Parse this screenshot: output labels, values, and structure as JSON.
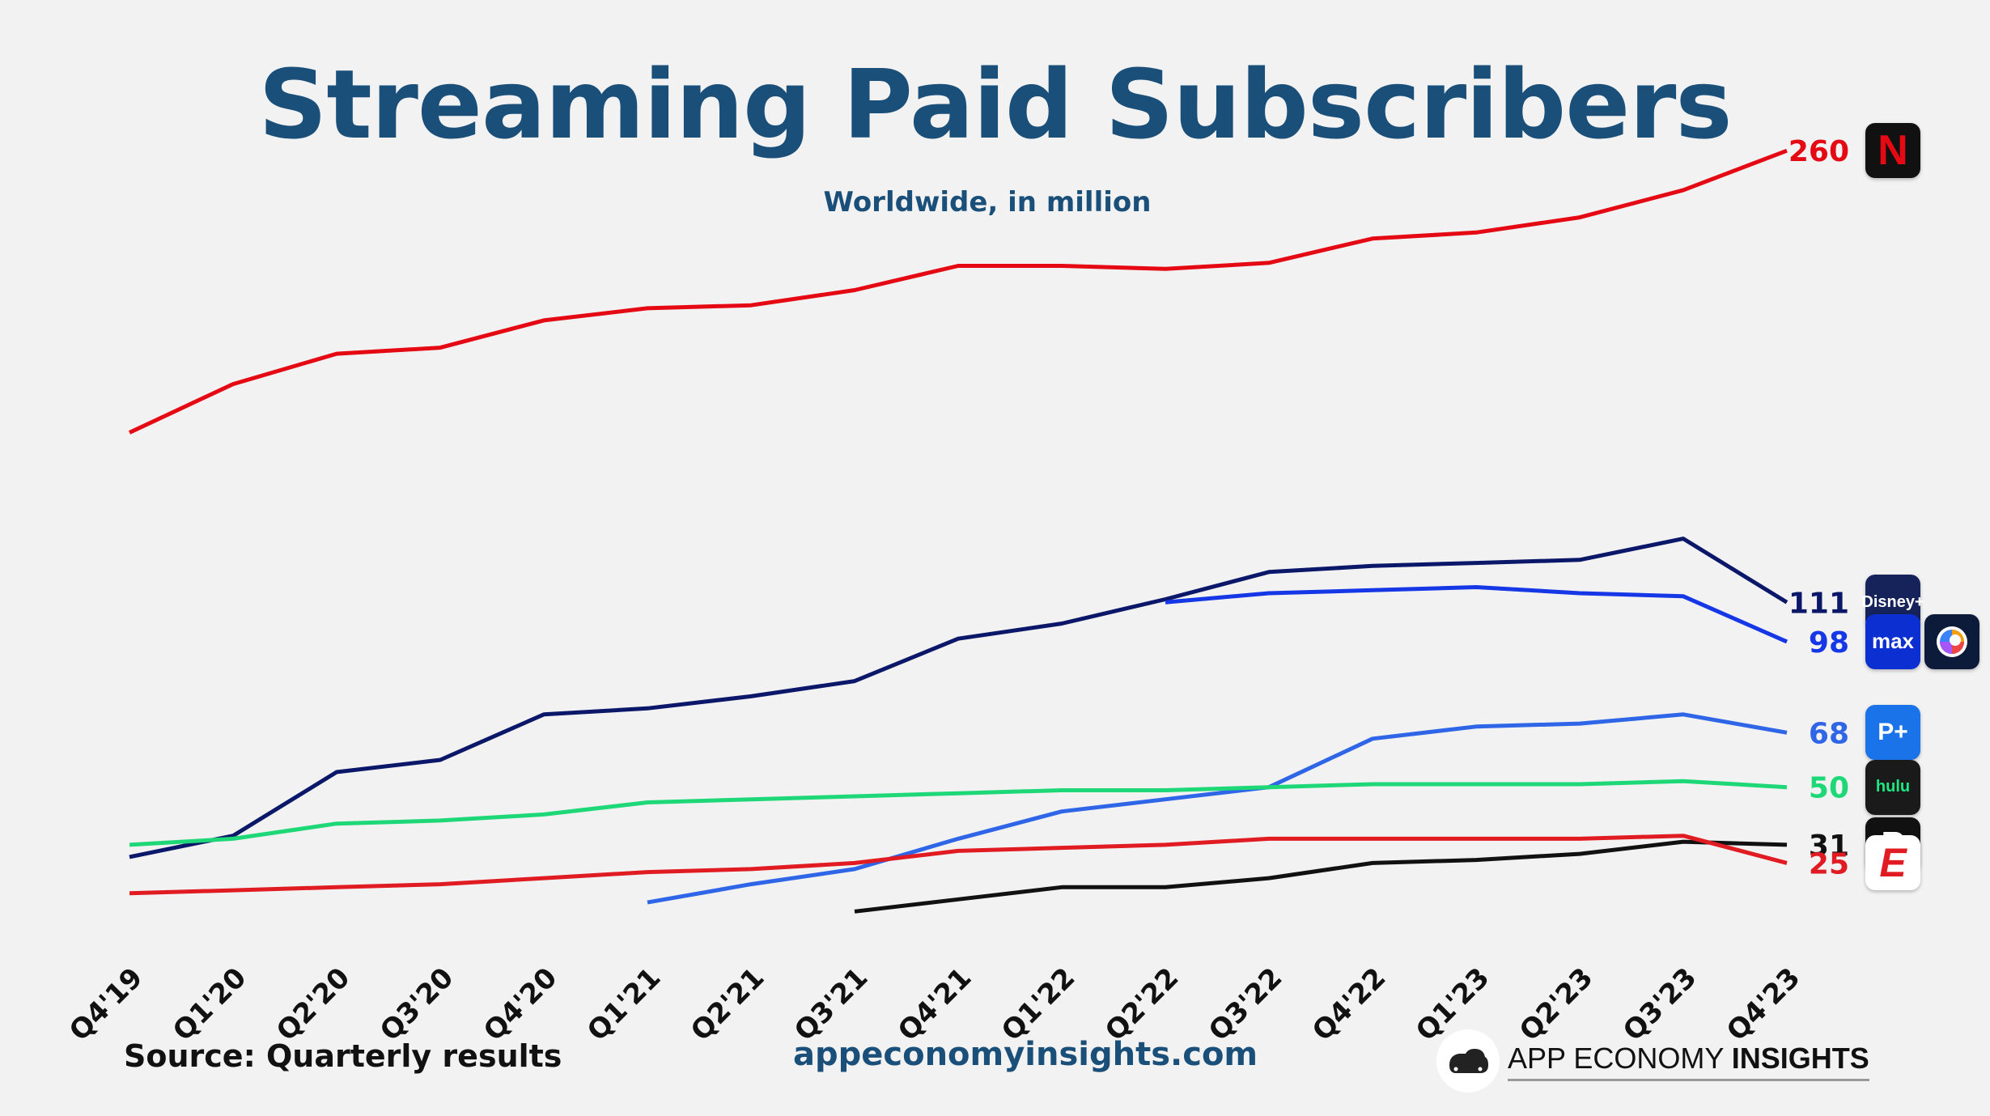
{
  "title": "Streaming Paid Subscribers",
  "subtitle": "Worldwide, in million",
  "footer": {
    "source": "Source: Quarterly results",
    "website": "appeconomyinsights.com",
    "brand_regular": "APP ECONOMY ",
    "brand_bold": "INSIGHTS"
  },
  "chart_data": {
    "type": "line",
    "title": "Streaming Paid Subscribers",
    "subtitle": "Worldwide, in million",
    "x": [
      "Q4'19",
      "Q1'20",
      "Q2'20",
      "Q3'20",
      "Q4'20",
      "Q1'21",
      "Q2'21",
      "Q3'21",
      "Q4'21",
      "Q1'22",
      "Q2'22",
      "Q3'22",
      "Q4'22",
      "Q1'23",
      "Q2'23",
      "Q3'23",
      "Q4'23"
    ],
    "ylim": [
      0,
      275
    ],
    "grid": false,
    "legend": "none",
    "series": [
      {
        "brand": "netflix",
        "label": "260",
        "color": "#e50914",
        "logo_text": "N",
        "logo_bg": "#111111",
        "logo_fg": "#e50914",
        "values": [
          167,
          183,
          193,
          195,
          204,
          208,
          209,
          214,
          222,
          222,
          221,
          223,
          231,
          233,
          238,
          247,
          260
        ]
      },
      {
        "brand": "disney-plus",
        "label": "111",
        "color": "#0b1769",
        "logo_text": "Disney+",
        "logo_bg": "#15235a",
        "logo_fg": "#ffffff",
        "values": [
          27,
          34,
          55,
          59,
          74,
          76,
          80,
          85,
          99,
          104,
          112,
          121,
          123,
          124,
          125,
          132,
          111
        ]
      },
      {
        "brand": "max",
        "label": "98",
        "color": "#1537e6",
        "logo_text": "max",
        "logo_bg": "#0c2fd1",
        "logo_fg": "#ffffff",
        "values": [
          null,
          null,
          null,
          null,
          null,
          null,
          null,
          null,
          null,
          null,
          111,
          114,
          115,
          116,
          114,
          113,
          98
        ]
      },
      {
        "brand": "paramount-plus",
        "label": "68",
        "color": "#2f66e8",
        "logo_text": "P+",
        "logo_bg": "#1a73e8",
        "logo_fg": "#ffffff",
        "values": [
          null,
          null,
          null,
          null,
          null,
          12,
          18,
          23,
          33,
          42,
          46,
          50,
          66,
          70,
          71,
          74,
          68
        ]
      },
      {
        "brand": "hulu",
        "label": "50",
        "color": "#1ed877",
        "logo_text": "hulu",
        "logo_bg": "#1a1a1a",
        "logo_fg": "#1ce783",
        "values": [
          31,
          33,
          38,
          39,
          41,
          45,
          46,
          47,
          48,
          49,
          49,
          50,
          51,
          51,
          51,
          52,
          50
        ]
      },
      {
        "brand": "peacock",
        "label": "31",
        "color": "#111111",
        "logo_text": "P",
        "logo_bg": "#111111",
        "logo_fg": "#ffffff",
        "values": [
          null,
          null,
          null,
          null,
          null,
          null,
          null,
          9,
          13,
          17,
          17,
          20,
          25,
          26,
          28,
          32,
          31
        ]
      },
      {
        "brand": "espn-plus",
        "label": "25",
        "color": "#e01b22",
        "logo_text": "E",
        "logo_bg": "#ffffff",
        "logo_fg": "#e01b22",
        "values": [
          15,
          16,
          17,
          18,
          20,
          22,
          23,
          25,
          29,
          30,
          31,
          33,
          33,
          33,
          33,
          34,
          25
        ]
      }
    ],
    "extra_logos": [
      {
        "brand": "discovery-plus"
      }
    ]
  }
}
